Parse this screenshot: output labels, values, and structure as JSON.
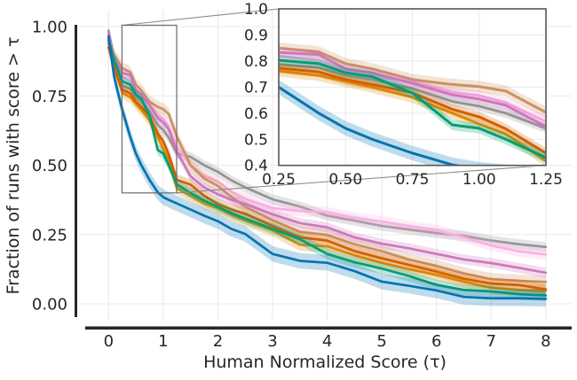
{
  "style": {
    "background": "#ffffff",
    "text_color": "#262626",
    "spine_color": "#262626",
    "grid_color": "#eaeaea",
    "inset_border_color": "#555555",
    "zoom_rect_color": "#6b6b6b",
    "connector_color": "#8a8a8a"
  },
  "chart_data": {
    "type": "line",
    "title": "",
    "xlabel": "Human Normalized Score (τ)",
    "ylabel": "Fraction of runs with score > τ",
    "grid": true,
    "legend": false,
    "main_axis": {
      "xlim": [
        -0.45,
        8.45
      ],
      "ylim": [
        -0.05,
        1.05
      ],
      "x_tick_values": [
        0,
        1,
        2,
        3,
        4,
        5,
        6,
        7,
        8
      ],
      "x_tick_labels": [
        "0",
        "1",
        "2",
        "3",
        "4",
        "5",
        "6",
        "7",
        "8"
      ],
      "y_tick_values": [
        0,
        0.25,
        0.5,
        0.75,
        1.0
      ],
      "y_tick_labels": [
        "0.00",
        "0.25",
        "0.50",
        "0.75",
        "1.00"
      ]
    },
    "inset_axis": {
      "description": "zoomed view of region tau 0.25-1.25, fraction 0.4-1.0",
      "xlim": [
        0.25,
        1.25
      ],
      "ylim": [
        0.4,
        1.0
      ],
      "x_tick_values": [
        0.25,
        0.5,
        0.75,
        1.0,
        1.25
      ],
      "x_tick_labels": [
        "0.25",
        "0.50",
        "0.75",
        "1.00",
        "1.25"
      ],
      "y_tick_values": [
        0.4,
        0.5,
        0.6,
        0.7,
        0.8,
        0.9,
        1.0
      ],
      "y_tick_labels": [
        "0.4",
        "0.5",
        "0.6",
        "0.7",
        "0.8",
        "0.9",
        "1.0"
      ],
      "zoom_region": {
        "x": [
          0.25,
          1.25
        ],
        "y": [
          0.4,
          1.0
        ]
      }
    },
    "x": [
      0,
      0.1,
      0.25,
      0.4,
      0.5,
      0.6,
      0.75,
      0.9,
      1.0,
      1.1,
      1.25,
      1.5,
      1.75,
      2.0,
      2.25,
      2.5,
      3.0,
      3.5,
      4.0,
      4.5,
      5.0,
      5.5,
      6.0,
      6.5,
      7.0,
      7.5,
      8.0
    ],
    "series": [
      {
        "name": "gray-series",
        "color": "#949494",
        "band": 0.018,
        "values": [
          0.955,
          0.87,
          0.787,
          0.775,
          0.746,
          0.73,
          0.695,
          0.645,
          0.627,
          0.6,
          0.542,
          0.53,
          0.5,
          0.476,
          0.445,
          0.42,
          0.377,
          0.351,
          0.318,
          0.3,
          0.281,
          0.268,
          0.255,
          0.245,
          0.228,
          0.215,
          0.205
        ]
      },
      {
        "name": "pink-series",
        "color": "#fbafe4",
        "band": 0.02,
        "values": [
          0.975,
          0.88,
          0.82,
          0.8,
          0.763,
          0.745,
          0.719,
          0.68,
          0.668,
          0.64,
          0.569,
          0.5,
          0.462,
          0.44,
          0.405,
          0.38,
          0.345,
          0.335,
          0.33,
          0.31,
          0.297,
          0.28,
          0.265,
          0.24,
          0.21,
          0.19,
          0.178
        ]
      },
      {
        "name": "tan-series",
        "color": "#ca9161",
        "band": 0.022,
        "values": [
          0.96,
          0.9,
          0.85,
          0.835,
          0.79,
          0.77,
          0.729,
          0.71,
          0.702,
          0.685,
          0.603,
          0.5,
          0.452,
          0.425,
          0.385,
          0.35,
          0.302,
          0.26,
          0.249,
          0.215,
          0.19,
          0.16,
          0.137,
          0.11,
          0.089,
          0.083,
          0.079
        ]
      },
      {
        "name": "magenta-series",
        "color": "#cc78bc",
        "band": 0.018,
        "values": [
          0.985,
          0.89,
          0.833,
          0.825,
          0.77,
          0.755,
          0.715,
          0.67,
          0.654,
          0.63,
          0.549,
          0.46,
          0.42,
          0.395,
          0.375,
          0.36,
          0.323,
          0.291,
          0.276,
          0.24,
          0.217,
          0.2,
          0.18,
          0.16,
          0.147,
          0.13,
          0.112
        ]
      },
      {
        "name": "orange-series",
        "color": "#de8f05",
        "band": 0.022,
        "values": [
          0.94,
          0.86,
          0.762,
          0.745,
          0.722,
          0.7,
          0.661,
          0.6,
          0.559,
          0.52,
          0.417,
          0.39,
          0.362,
          0.345,
          0.32,
          0.3,
          0.265,
          0.213,
          0.207,
          0.175,
          0.148,
          0.125,
          0.105,
          0.08,
          0.058,
          0.05,
          0.048
        ]
      },
      {
        "name": "dark-orange-series",
        "color": "#d55e00",
        "band": 0.02,
        "values": [
          0.925,
          0.85,
          0.773,
          0.758,
          0.729,
          0.71,
          0.678,
          0.615,
          0.586,
          0.54,
          0.447,
          0.43,
          0.39,
          0.36,
          0.34,
          0.325,
          0.281,
          0.24,
          0.228,
          0.19,
          0.164,
          0.14,
          0.116,
          0.09,
          0.073,
          0.068,
          0.052
        ]
      },
      {
        "name": "green-series",
        "color": "#029e73",
        "band": 0.02,
        "values": [
          0.95,
          0.88,
          0.803,
          0.79,
          0.755,
          0.74,
          0.678,
          0.555,
          0.542,
          0.5,
          0.43,
          0.4,
          0.372,
          0.35,
          0.327,
          0.307,
          0.271,
          0.233,
          0.18,
          0.15,
          0.127,
          0.1,
          0.068,
          0.05,
          0.045,
          0.035,
          0.03
        ]
      },
      {
        "name": "blue-series",
        "color": "#0173b2",
        "band": 0.028,
        "values": [
          0.965,
          0.82,
          0.7,
          0.6,
          0.542,
          0.5,
          0.447,
          0.402,
          0.385,
          0.375,
          0.362,
          0.34,
          0.318,
          0.298,
          0.27,
          0.252,
          0.18,
          0.155,
          0.148,
          0.118,
          0.08,
          0.065,
          0.048,
          0.025,
          0.02,
          0.02,
          0.018
        ]
      }
    ]
  }
}
